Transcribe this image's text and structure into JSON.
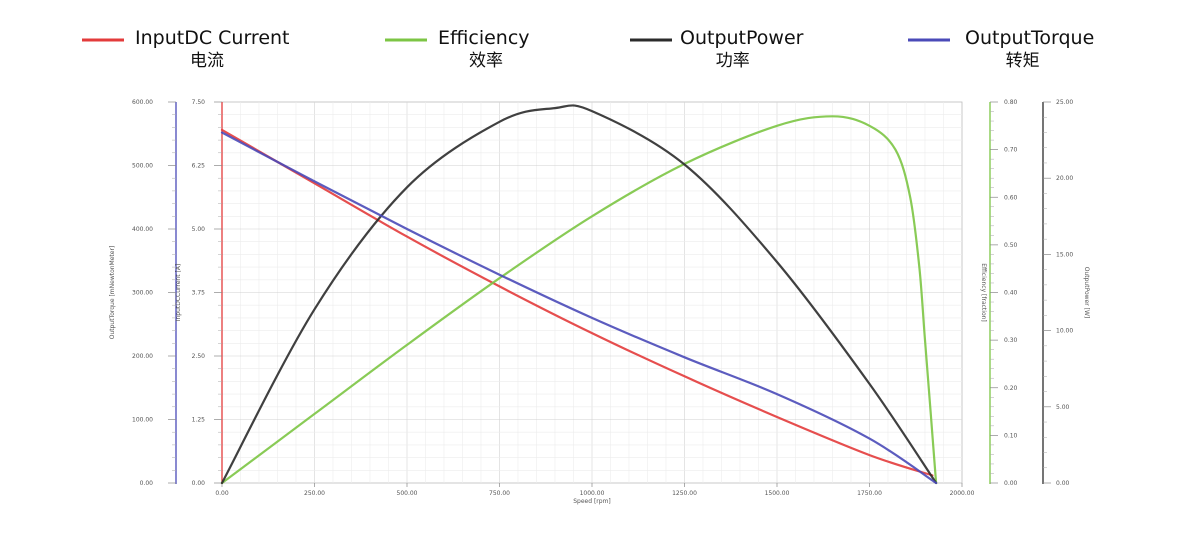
{
  "chart_data": {
    "type": "line",
    "title": "",
    "legend": [
      {
        "name": "InputDC Current",
        "sub": "电流",
        "color": "#e33b3b"
      },
      {
        "name": "Efficiency",
        "sub": "效率",
        "color": "#7cc544"
      },
      {
        "name": "OutputPower",
        "sub": "功率",
        "color": "#2b2b2b"
      },
      {
        "name": "OutputTorque",
        "sub": "转矩",
        "color": "#4a4ab8"
      }
    ],
    "legend_position": "top",
    "grid": true,
    "x": {
      "label": "Speed [rpm]",
      "range": [
        0,
        2000
      ],
      "ticks": [
        "0.00",
        "250.00",
        "500.00",
        "750.00",
        "1000.00",
        "1250.00",
        "1500.00",
        "1750.00",
        "2000.00"
      ]
    },
    "y_axes": [
      {
        "id": "torque",
        "label": "OutputTorque [mNewtonMeter]",
        "range": [
          0,
          600
        ],
        "color": "#4a4ab8",
        "ticks": [
          "0.00",
          "100.00",
          "200.00",
          "300.00",
          "400.00",
          "500.00",
          "600.00"
        ]
      },
      {
        "id": "current",
        "label": "InputDCCurrent [A]",
        "range": [
          0,
          7.5
        ],
        "color": "#e33b3b",
        "ticks": [
          "0.00",
          "1.25",
          "2.50",
          "3.75",
          "5.00",
          "6.25",
          "7.50"
        ]
      },
      {
        "id": "efficiency",
        "label": "Efficiency [fraction]",
        "range": [
          0,
          0.8
        ],
        "color": "#7cc544",
        "ticks": [
          "0.00",
          "0.10",
          "0.20",
          "0.30",
          "0.40",
          "0.50",
          "0.60",
          "0.70",
          "0.80"
        ]
      },
      {
        "id": "power",
        "label": "OutputPower [W]",
        "range": [
          0,
          25
        ],
        "color": "#2b2b2b",
        "ticks": [
          "0.00",
          "5.00",
          "10.00",
          "15.00",
          "20.00",
          "25.00"
        ]
      }
    ],
    "series": [
      {
        "name": "InputDC Current",
        "axis": "current",
        "color": "#e33b3b",
        "x": [
          0,
          250,
          500,
          750,
          1000,
          1250,
          1500,
          1750,
          1920
        ],
        "y": [
          6.95,
          5.9,
          4.85,
          3.87,
          2.95,
          2.1,
          1.3,
          0.55,
          0.15
        ]
      },
      {
        "name": "Efficiency",
        "axis": "efficiency",
        "color": "#7cc544",
        "x": [
          0,
          250,
          500,
          750,
          1000,
          1250,
          1500,
          1650,
          1750,
          1820,
          1860,
          1885,
          1900,
          1915,
          1930
        ],
        "y": [
          0.0,
          0.145,
          0.29,
          0.43,
          0.56,
          0.67,
          0.75,
          0.77,
          0.75,
          0.7,
          0.6,
          0.45,
          0.3,
          0.15,
          0.0
        ]
      },
      {
        "name": "OutputPower",
        "axis": "power",
        "color": "#2b2b2b",
        "x": [
          0,
          250,
          500,
          750,
          900,
          1000,
          1250,
          1500,
          1750,
          1930
        ],
        "y": [
          0.0,
          11.4,
          19.4,
          23.7,
          24.6,
          24.4,
          20.9,
          14.5,
          6.5,
          0.0
        ]
      },
      {
        "name": "OutputTorque",
        "axis": "torque",
        "color": "#4a4ab8",
        "x": [
          0,
          250,
          500,
          750,
          1000,
          1250,
          1500,
          1750,
          1930
        ],
        "y": [
          552,
          475,
          400,
          328,
          260,
          198,
          140,
          70,
          0
        ]
      }
    ]
  }
}
